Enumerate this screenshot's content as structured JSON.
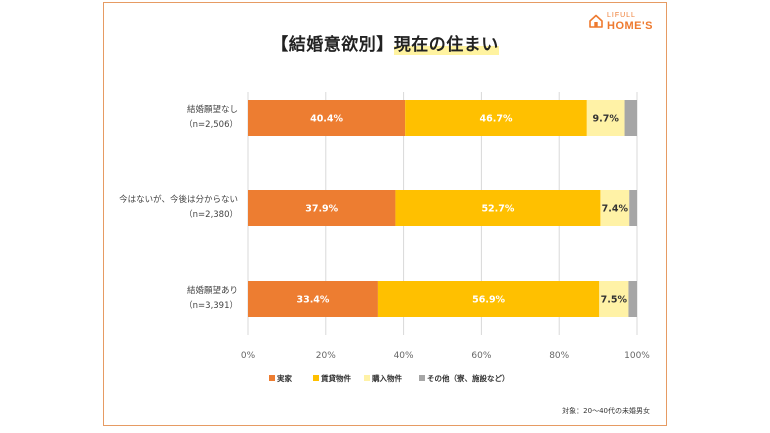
{
  "logo": {
    "line1": "LIFULL",
    "line2": "HOME'S"
  },
  "title": {
    "prefix": "【結婚意欲別】",
    "highlight": "現在の住まい"
  },
  "chart_data": {
    "type": "bar",
    "orientation": "horizontal",
    "stacked": true,
    "categories": [
      {
        "name": "結婚願望なし",
        "n": "（n=2,506）"
      },
      {
        "name": "今はないが、今後は分からない",
        "n": "（n=2,380）"
      },
      {
        "name": "結婚願望あり",
        "n": "（n=3,391）"
      }
    ],
    "series": [
      {
        "name": "実家",
        "color": "#ed7d31",
        "values": [
          40.4,
          37.9,
          33.4
        ]
      },
      {
        "name": "賃貸物件",
        "color": "#ffc000",
        "values": [
          46.7,
          52.7,
          56.9
        ]
      },
      {
        "name": "購入物件",
        "color": "#fff2a6",
        "values": [
          9.7,
          7.4,
          7.5
        ]
      },
      {
        "name": "その他（寮、施設など）",
        "color": "#a6a6a6",
        "values": [
          3.2,
          2.0,
          2.2
        ]
      }
    ],
    "value_labels": [
      [
        "40.4%",
        "46.7%",
        "9.7%",
        ""
      ],
      [
        "37.9%",
        "52.7%",
        "7.4%",
        ""
      ],
      [
        "33.4%",
        "56.9%",
        "7.5%",
        ""
      ]
    ],
    "x_ticks": [
      "0%",
      "20%",
      "40%",
      "60%",
      "80%",
      "100%"
    ],
    "xlim": [
      0,
      100
    ],
    "grid": true,
    "legend_position": "bottom"
  },
  "footnote": "対象：20～40代の未婚男女"
}
